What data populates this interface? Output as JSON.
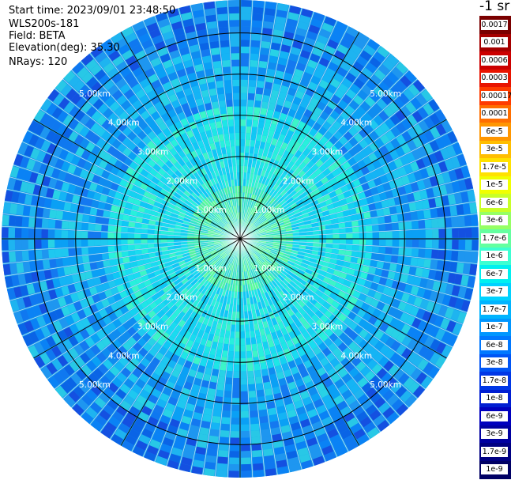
{
  "info": {
    "start_time": "Start time: 2023/09/01 23:48:50",
    "instrument": "WLS200s-181",
    "field": "Field: BETA",
    "elevation": "Elevation(deg): 35.30",
    "nrays": "NRays: 120"
  },
  "plot": {
    "rings_km": [
      1,
      2,
      3,
      4,
      5
    ],
    "ring_labels": [
      "1.00km",
      "2.00km",
      "3.00km",
      "4.00km",
      "5.00km"
    ],
    "max_range_km": 5.8,
    "spoke_step_deg": 30,
    "nrays": 120
  },
  "colorbar": {
    "unit": "-1 sr",
    "labels": [
      "0.0017",
      "0.001",
      "0.0006",
      "0.0003",
      "0.00017",
      "0.0001",
      "6e-5",
      "3e-5",
      "1.7e-5",
      "1e-5",
      "6e-6",
      "3e-6",
      "1.7e-6",
      "1e-6",
      "6e-7",
      "3e-7",
      "1.7e-7",
      "1e-7",
      "6e-8",
      "3e-8",
      "1.7e-8",
      "1e-8",
      "6e-9",
      "3e-9",
      "1.7e-9",
      "1e-9"
    ],
    "colors": [
      "#7a0000",
      "#a50000",
      "#cc0000",
      "#e81400",
      "#ff3c00",
      "#ff6e00",
      "#ff9600",
      "#ffbe00",
      "#ffe100",
      "#f0ff00",
      "#c8ff28",
      "#96ff64",
      "#64ffa0",
      "#3cffd2",
      "#00f0f0",
      "#00d2ff",
      "#00b4ff",
      "#0096ff",
      "#0078ff",
      "#0055f5",
      "#0037e6",
      "#001ed2",
      "#0000be",
      "#0000a0",
      "#000082",
      "#000064"
    ]
  }
}
